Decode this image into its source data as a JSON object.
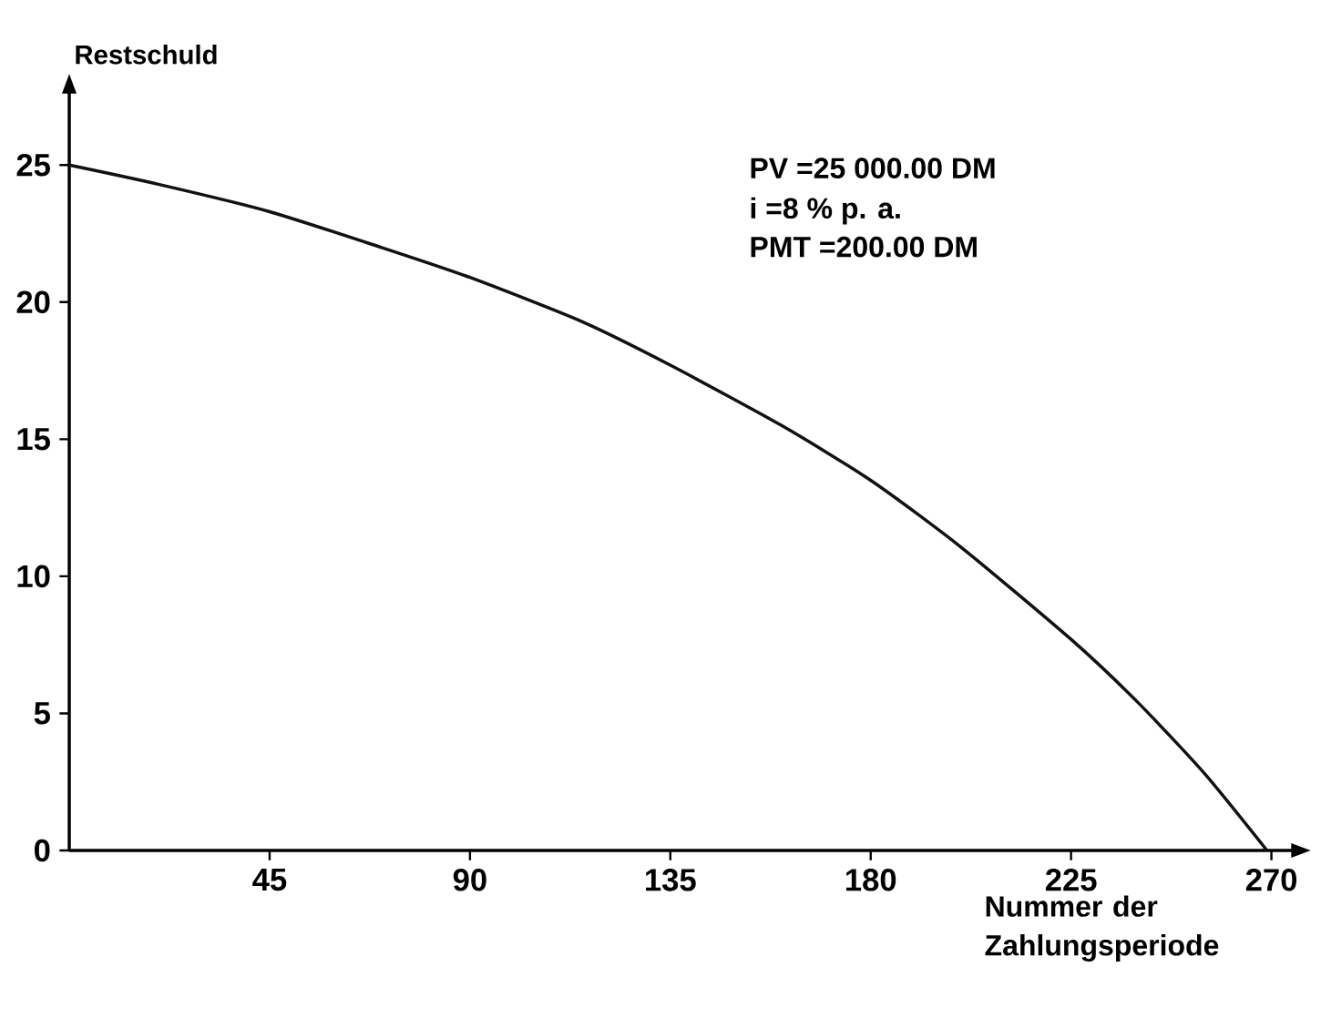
{
  "chart_data": {
    "type": "line",
    "xlabel": "Nummer der Zahlungsperiode",
    "ylabel": "Restschuld",
    "x": [
      0,
      20,
      45,
      70,
      90,
      115,
      135,
      160,
      180,
      200,
      225,
      240,
      255,
      269
    ],
    "values": [
      25,
      24.3,
      23.3,
      22.0,
      20.9,
      19.3,
      17.7,
      15.5,
      13.5,
      11.1,
      7.7,
      5.4,
      2.8,
      0
    ],
    "color": "#111111",
    "marker": "none",
    "line_style": "solid",
    "grid": false,
    "xlim": [
      0,
      275
    ],
    "ylim": [
      0,
      27.7
    ],
    "xticks": [
      45,
      90,
      135,
      180,
      225,
      270
    ],
    "yticks": [
      0,
      5,
      10,
      15,
      20,
      25
    ],
    "annotations": [
      "PV  =25 000.00 DM",
      "i  =8 % p. a.",
      "PMT =200.00 DM"
    ]
  }
}
